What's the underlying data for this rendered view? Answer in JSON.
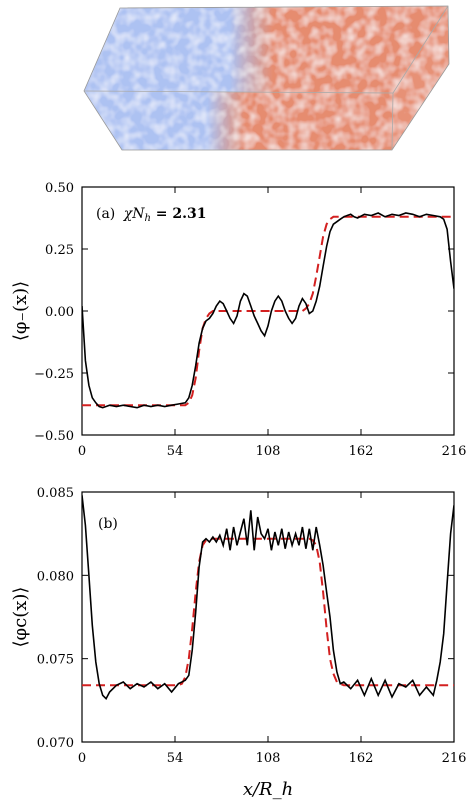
{
  "figure": {
    "colors": {
      "simulation": "#000000",
      "fit": "#d32020",
      "domain_a": "#a9bff2",
      "domain_b": "#e58668"
    },
    "box_image": {
      "description_name": "3d-simulation-box",
      "red_fraction_pattern": "left-blue-right-red"
    }
  },
  "chart_data": [
    {
      "type": "line",
      "panel_label": "(a)",
      "annotation": "χN_h = 2.31",
      "annotation_parts": {
        "chi": "χ",
        "N": "N",
        "sub": "h",
        "rest": " = 2.31"
      },
      "ylabel": "⟨φ₋(x)⟩",
      "xlim": [
        0,
        216
      ],
      "ylim": [
        -0.5,
        0.5
      ],
      "xticks": [
        "0",
        "54",
        "108",
        "162",
        "216"
      ],
      "xtick_values": [
        0,
        54,
        108,
        162,
        216
      ],
      "yticks": [
        "−0.50",
        "−0.25",
        "0.00",
        "0.25",
        "0.50"
      ],
      "ytick_values": [
        -0.5,
        -0.25,
        0,
        0.25,
        0.5
      ],
      "series": [
        {
          "style": "solid",
          "color": "#000000",
          "x": [
            0,
            2,
            4,
            6,
            8,
            10,
            12,
            16,
            20,
            24,
            28,
            32,
            36,
            40,
            44,
            48,
            52,
            56,
            60,
            62,
            64,
            66,
            68,
            70,
            72,
            74,
            76,
            78,
            80,
            82,
            84,
            86,
            88,
            90,
            92,
            94,
            96,
            98,
            100,
            102,
            104,
            106,
            108,
            110,
            112,
            114,
            116,
            118,
            120,
            122,
            124,
            126,
            128,
            130,
            132,
            134,
            136,
            138,
            140,
            142,
            144,
            146,
            148,
            150,
            152,
            154,
            156,
            158,
            160,
            164,
            168,
            172,
            176,
            180,
            184,
            188,
            192,
            196,
            200,
            204,
            208,
            210,
            212,
            214,
            216
          ],
          "y": [
            0.02,
            -0.2,
            -0.3,
            -0.35,
            -0.37,
            -0.385,
            -0.39,
            -0.38,
            -0.385,
            -0.38,
            -0.385,
            -0.39,
            -0.38,
            -0.385,
            -0.38,
            -0.385,
            -0.38,
            -0.375,
            -0.37,
            -0.35,
            -0.3,
            -0.22,
            -0.13,
            -0.07,
            -0.04,
            -0.03,
            -0.01,
            0.02,
            0.04,
            0.03,
            0.0,
            -0.03,
            -0.05,
            -0.02,
            0.04,
            0.07,
            0.06,
            0.02,
            -0.02,
            -0.05,
            -0.08,
            -0.1,
            -0.06,
            0.0,
            0.04,
            0.06,
            0.04,
            0.0,
            -0.03,
            -0.05,
            -0.03,
            0.02,
            0.05,
            0.03,
            -0.01,
            0.0,
            0.04,
            0.1,
            0.18,
            0.26,
            0.32,
            0.35,
            0.36,
            0.37,
            0.38,
            0.385,
            0.39,
            0.38,
            0.375,
            0.39,
            0.385,
            0.395,
            0.38,
            0.39,
            0.385,
            0.395,
            0.39,
            0.38,
            0.39,
            0.385,
            0.38,
            0.37,
            0.33,
            0.2,
            0.09
          ]
        },
        {
          "style": "dashed",
          "color": "#d32020",
          "x": [
            0,
            60,
            62,
            64,
            66,
            68,
            70,
            72,
            74,
            76,
            80,
            128,
            130,
            132,
            134,
            136,
            138,
            140,
            142,
            144,
            146,
            150,
            216
          ],
          "y": [
            -0.38,
            -0.38,
            -0.37,
            -0.34,
            -0.27,
            -0.16,
            -0.07,
            -0.03,
            -0.01,
            0.0,
            0.0,
            0.0,
            0.01,
            0.03,
            0.07,
            0.14,
            0.22,
            0.3,
            0.35,
            0.37,
            0.38,
            0.38,
            0.38
          ]
        }
      ]
    },
    {
      "type": "line",
      "panel_label": "(b)",
      "ylabel": "⟨φc(x)⟩",
      "xlabel": "x/R_h",
      "xlim": [
        0,
        216
      ],
      "ylim": [
        0.07,
        0.085
      ],
      "xticks": [
        "0",
        "54",
        "108",
        "162",
        "216"
      ],
      "xtick_values": [
        0,
        54,
        108,
        162,
        216
      ],
      "yticks": [
        "0.070",
        "0.075",
        "0.080",
        "0.085"
      ],
      "ytick_values": [
        0.07,
        0.075,
        0.08,
        0.085
      ],
      "series": [
        {
          "style": "solid",
          "color": "#000000",
          "x": [
            0,
            2,
            4,
            6,
            8,
            10,
            12,
            14,
            16,
            20,
            24,
            28,
            32,
            36,
            40,
            44,
            48,
            52,
            56,
            60,
            62,
            64,
            66,
            68,
            70,
            72,
            74,
            76,
            78,
            80,
            82,
            84,
            86,
            88,
            90,
            92,
            94,
            96,
            98,
            100,
            102,
            104,
            106,
            108,
            110,
            112,
            114,
            116,
            118,
            120,
            122,
            124,
            126,
            128,
            130,
            132,
            134,
            136,
            138,
            140,
            142,
            144,
            146,
            148,
            150,
            152,
            156,
            160,
            164,
            168,
            172,
            176,
            180,
            184,
            188,
            192,
            196,
            200,
            204,
            206,
            208,
            210,
            212,
            214,
            216
          ],
          "y": [
            0.0848,
            0.083,
            0.08,
            0.077,
            0.0748,
            0.0735,
            0.0728,
            0.0726,
            0.073,
            0.0734,
            0.0736,
            0.0732,
            0.0735,
            0.0733,
            0.0736,
            0.0732,
            0.0735,
            0.073,
            0.0735,
            0.0737,
            0.074,
            0.0755,
            0.0778,
            0.0805,
            0.082,
            0.0822,
            0.082,
            0.0823,
            0.082,
            0.0824,
            0.0818,
            0.0828,
            0.0815,
            0.0829,
            0.0818,
            0.0826,
            0.0834,
            0.0818,
            0.0839,
            0.0815,
            0.0835,
            0.0825,
            0.0822,
            0.0828,
            0.0815,
            0.0826,
            0.0818,
            0.0828,
            0.0816,
            0.0826,
            0.0818,
            0.0825,
            0.0818,
            0.0829,
            0.0816,
            0.0828,
            0.0815,
            0.0829,
            0.0818,
            0.0806,
            0.079,
            0.0775,
            0.0755,
            0.0742,
            0.0735,
            0.0736,
            0.0732,
            0.0737,
            0.0728,
            0.0738,
            0.0728,
            0.0737,
            0.0727,
            0.0735,
            0.0733,
            0.0737,
            0.0728,
            0.0733,
            0.0728,
            0.0737,
            0.0748,
            0.0765,
            0.0795,
            0.0825,
            0.0842
          ]
        },
        {
          "style": "dashed",
          "color": "#d32020",
          "x": [
            0,
            56,
            58,
            60,
            62,
            64,
            66,
            68,
            70,
            72,
            74,
            78,
            132,
            134,
            136,
            138,
            140,
            142,
            144,
            146,
            148,
            150,
            152,
            216
          ],
          "y": [
            0.0734,
            0.0734,
            0.0735,
            0.0739,
            0.075,
            0.0768,
            0.079,
            0.0808,
            0.0818,
            0.0821,
            0.0822,
            0.0822,
            0.0822,
            0.0821,
            0.0818,
            0.0808,
            0.079,
            0.0768,
            0.075,
            0.0741,
            0.0736,
            0.0735,
            0.0734,
            0.0734
          ]
        }
      ]
    }
  ]
}
